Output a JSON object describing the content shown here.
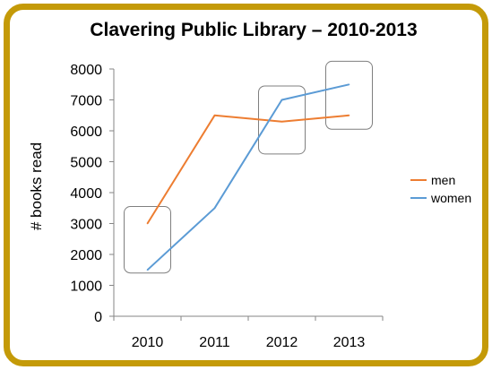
{
  "chart_data": {
    "type": "line",
    "title": "Clavering Public Library – 2010-2013",
    "xlabel": "",
    "ylabel": "# books read",
    "categories": [
      "2010",
      "2011",
      "2012",
      "2013"
    ],
    "ylim": [
      0,
      8000
    ],
    "yticks": [
      "0",
      "1000",
      "2000",
      "3000",
      "4000",
      "5000",
      "6000",
      "7000",
      "8000"
    ],
    "grid": false,
    "legend_position": "right",
    "series": [
      {
        "name": "men",
        "values": [
          3000,
          6500,
          6300,
          6500
        ],
        "color": "#ED7D31"
      },
      {
        "name": "women",
        "values": [
          1500,
          3500,
          7000,
          7500
        ],
        "color": "#5B9BD5"
      }
    ],
    "annotations": [
      {
        "type": "rounded-box",
        "category": "2010",
        "y_range": [
          1400,
          3550
        ]
      },
      {
        "type": "rounded-box",
        "category": "2012",
        "y_range": [
          5250,
          7450
        ]
      },
      {
        "type": "rounded-box",
        "category": "2013",
        "y_range": [
          6050,
          8250
        ]
      }
    ]
  },
  "colors": {
    "border": "#C49A08",
    "axis": "#868686",
    "annotation_box": "#7F7F7F"
  }
}
